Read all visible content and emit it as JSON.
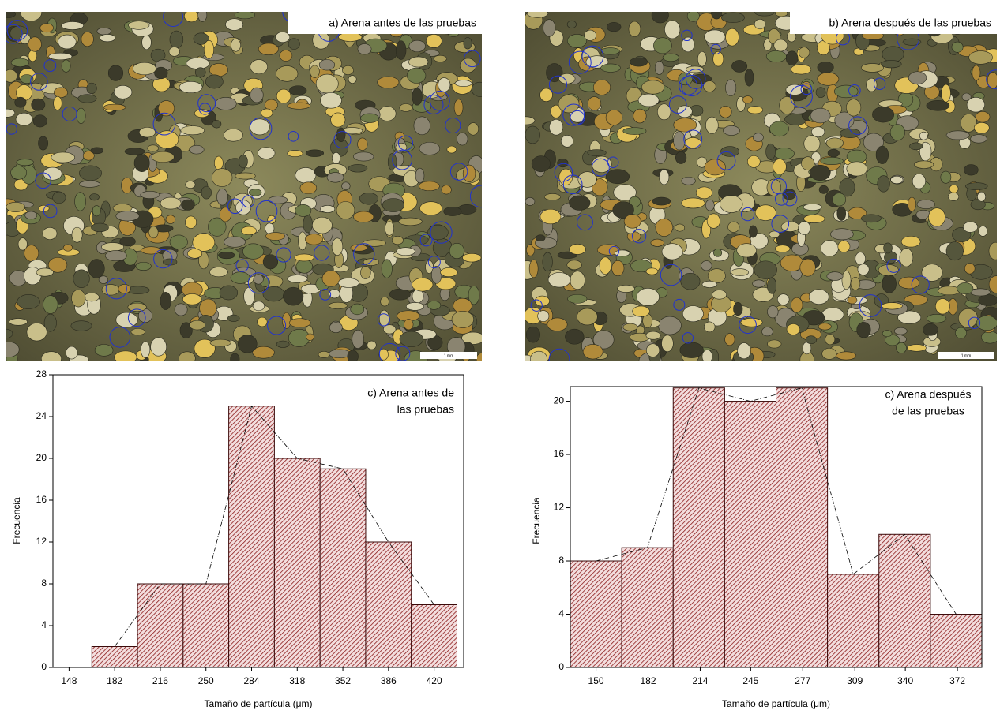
{
  "images": [
    {
      "label": "a) Arena antes de las pruebas",
      "scale_label": "1 mm"
    },
    {
      "label": "b) Arena después de las pruebas",
      "scale_label": "1 mm"
    }
  ],
  "chart_data": [
    {
      "type": "histogram",
      "annotation": [
        "c) Arena antes de",
        "las pruebas"
      ],
      "x_label": "Tamaño de partícula (μm)",
      "y_label": "Frecuencia",
      "bins": [
        165,
        199,
        233,
        267,
        301,
        335,
        369,
        403,
        437
      ],
      "values": [
        2,
        8,
        8,
        25,
        20,
        19,
        12,
        6
      ],
      "color": "#8b1a1a",
      "polygon": true,
      "xlim": [
        136,
        442
      ],
      "xticks": [
        148,
        182,
        216,
        250,
        284,
        318,
        352,
        386,
        420
      ],
      "ylim": [
        0,
        28
      ],
      "yticks": [
        0,
        4,
        8,
        12,
        16,
        20,
        24,
        28
      ]
    },
    {
      "type": "histogram",
      "annotation": [
        "c) Arena después",
        "de las pruebas"
      ],
      "x_label": "Tamaño de partícula (μm)",
      "y_label": "Frecuencia",
      "bins": [
        134.2,
        165.8,
        197.4,
        229,
        260.6,
        292.2,
        323.8,
        355.4,
        387
      ],
      "values": [
        8,
        9,
        21,
        20,
        21,
        7,
        10,
        4
      ],
      "color": "#8b1a1a",
      "polygon": true,
      "xlim": [
        134.2,
        387
      ],
      "xticks": [
        150,
        182,
        214,
        245,
        277,
        309,
        340,
        372
      ],
      "ylim": [
        0,
        21.1
      ],
      "yticks": [
        0,
        4,
        8,
        12,
        16,
        20
      ]
    }
  ]
}
